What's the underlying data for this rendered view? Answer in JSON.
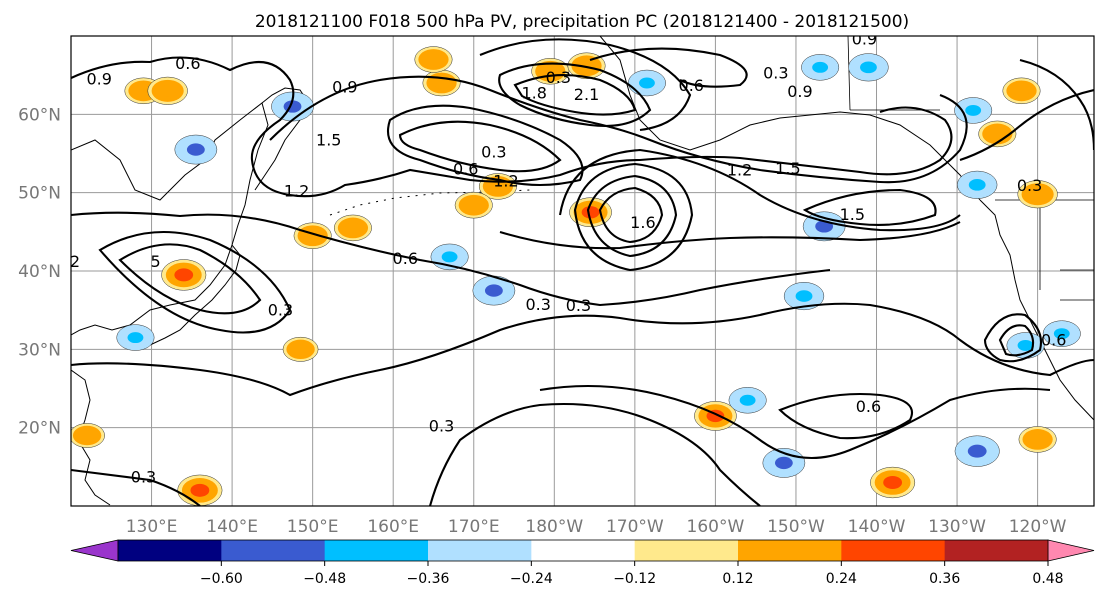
{
  "chart_data": {
    "type": "map",
    "title": "2018121100 F018 500 hPa PV, precipitation PC (2018121400 - 2018121500)",
    "lat_ticks": [
      "60°N",
      "50°N",
      "40°N",
      "30°N",
      "20°N"
    ],
    "lat_values": [
      60,
      50,
      40,
      30,
      20
    ],
    "lon_ticks": [
      "130°E",
      "140°E",
      "150°E",
      "160°E",
      "170°E",
      "180°W",
      "170°W",
      "160°W",
      "150°W",
      "140°W",
      "130°W",
      "120°W"
    ],
    "lon_values": [
      130,
      140,
      150,
      160,
      170,
      180,
      190,
      200,
      210,
      220,
      230,
      240
    ],
    "lon_range": [
      120,
      247
    ],
    "lat_range": [
      10,
      70
    ],
    "grid": true,
    "colorbar": {
      "ticks": [
        "−0.60",
        "−0.48",
        "−0.36",
        "−0.24",
        "−0.12",
        "0.12",
        "0.24",
        "0.36",
        "0.48",
        "0.60"
      ],
      "tick_values": [
        -0.6,
        -0.48,
        -0.36,
        -0.24,
        -0.12,
        0.12,
        0.24,
        0.36,
        0.48,
        0.6
      ],
      "colors": [
        "#9a35cc",
        "#000080",
        "#3a5bd0",
        "#00bfff",
        "#b0e0ff",
        "#ffffff",
        "#ffe98c",
        "#ffa500",
        "#ff4500",
        "#b22222",
        "#ff88b0"
      ],
      "extend": "both"
    },
    "contour_labels": [
      {
        "text": "0.9",
        "lon": 123.5,
        "lat": 63.8
      },
      {
        "text": "0.6",
        "lon": 134.5,
        "lat": 65.8
      },
      {
        "text": "0.9",
        "lon": 154.0,
        "lat": 62.8
      },
      {
        "text": "1.5",
        "lon": 152.0,
        "lat": 56.0
      },
      {
        "text": "1.2",
        "lon": 148.0,
        "lat": 49.5
      },
      {
        "text": "0.6",
        "lon": 169.0,
        "lat": 52.3
      },
      {
        "text": "0.3",
        "lon": 172.5,
        "lat": 54.5
      },
      {
        "text": "1.2",
        "lon": 174.0,
        "lat": 50.8
      },
      {
        "text": "0.6",
        "lon": 161.5,
        "lat": 40.9
      },
      {
        "text": "0.3",
        "lon": 146.0,
        "lat": 34.3
      },
      {
        "text": "0.3",
        "lon": 178.0,
        "lat": 35.0
      },
      {
        "text": "0.3",
        "lon": 183.0,
        "lat": 34.9
      },
      {
        "text": "1.8",
        "lon": 177.5,
        "lat": 62.0
      },
      {
        "text": "2.1",
        "lon": 184.0,
        "lat": 61.8
      },
      {
        "text": "0.3",
        "lon": 180.5,
        "lat": 64.0
      },
      {
        "text": "0.6",
        "lon": 197.0,
        "lat": 63.0
      },
      {
        "text": "0.3",
        "lon": 207.5,
        "lat": 64.6
      },
      {
        "text": "0.9",
        "lon": 210.5,
        "lat": 62.2
      },
      {
        "text": "0.9",
        "lon": 218.5,
        "lat": 68.9
      },
      {
        "text": "1.6",
        "lon": 191.0,
        "lat": 45.5
      },
      {
        "text": "1.2",
        "lon": 203.0,
        "lat": 52.2
      },
      {
        "text": "1.5",
        "lon": 209.0,
        "lat": 52.4
      },
      {
        "text": "1.5",
        "lon": 217.0,
        "lat": 46.5
      },
      {
        "text": "0.3",
        "lon": 239.0,
        "lat": 50.2
      },
      {
        "text": "2",
        "lon": 120.5,
        "lat": 40.5
      },
      {
        "text": "5",
        "lon": 130.5,
        "lat": 40.5
      },
      {
        "text": "0.6",
        "lon": 242.0,
        "lat": 30.5
      },
      {
        "text": "0.6",
        "lon": 219.0,
        "lat": 22.0
      },
      {
        "text": "0.3",
        "lon": 166.0,
        "lat": 19.5
      },
      {
        "text": "0.3",
        "lon": 129.0,
        "lat": 13.0
      }
    ],
    "precip_patches": [
      {
        "lon": 129.0,
        "lat": 63.0,
        "value": 0.3
      },
      {
        "lon": 132.0,
        "lat": 63.0,
        "value": 0.35
      },
      {
        "lon": 147.5,
        "lat": 61.0,
        "value": -0.4
      },
      {
        "lon": 135.5,
        "lat": 55.5,
        "value": -0.4
      },
      {
        "lon": 173.0,
        "lat": 50.8,
        "value": 0.3
      },
      {
        "lon": 170.0,
        "lat": 48.4,
        "value": 0.3
      },
      {
        "lon": 155.0,
        "lat": 45.5,
        "value": 0.3
      },
      {
        "lon": 150.0,
        "lat": 44.5,
        "value": 0.3
      },
      {
        "lon": 166.0,
        "lat": 64.0,
        "value": 0.3
      },
      {
        "lon": 165.0,
        "lat": 67.0,
        "value": 0.3
      },
      {
        "lon": 179.5,
        "lat": 65.5,
        "value": 0.3
      },
      {
        "lon": 184.0,
        "lat": 66.2,
        "value": 0.3
      },
      {
        "lon": 184.5,
        "lat": 47.5,
        "value": 0.4
      },
      {
        "lon": 167.0,
        "lat": 41.8,
        "value": -0.3
      },
      {
        "lon": 172.5,
        "lat": 37.5,
        "value": -0.4
      },
      {
        "lon": 191.5,
        "lat": 64.0,
        "value": -0.3
      },
      {
        "lon": 213.0,
        "lat": 66.0,
        "value": -0.3
      },
      {
        "lon": 219.0,
        "lat": 66.0,
        "value": -0.35
      },
      {
        "lon": 238.0,
        "lat": 63.0,
        "value": 0.3
      },
      {
        "lon": 232.0,
        "lat": 60.5,
        "value": -0.3
      },
      {
        "lon": 235.0,
        "lat": 57.5,
        "value": 0.3
      },
      {
        "lon": 232.5,
        "lat": 51.0,
        "value": -0.35
      },
      {
        "lon": 240.0,
        "lat": 49.8,
        "value": 0.35
      },
      {
        "lon": 213.5,
        "lat": 45.7,
        "value": -0.4
      },
      {
        "lon": 211.0,
        "lat": 36.8,
        "value": -0.35
      },
      {
        "lon": 134.0,
        "lat": 39.5,
        "value": 0.45
      },
      {
        "lon": 128.0,
        "lat": 31.5,
        "value": -0.3
      },
      {
        "lon": 148.5,
        "lat": 30.0,
        "value": 0.25
      },
      {
        "lon": 200.0,
        "lat": 21.5,
        "value": 0.4
      },
      {
        "lon": 204.0,
        "lat": 23.5,
        "value": -0.3
      },
      {
        "lon": 208.5,
        "lat": 15.5,
        "value": -0.4
      },
      {
        "lon": 222.0,
        "lat": 13.0,
        "value": 0.45
      },
      {
        "lon": 232.5,
        "lat": 17.0,
        "value": -0.45
      },
      {
        "lon": 240.0,
        "lat": 18.5,
        "value": 0.3
      },
      {
        "lon": 136.0,
        "lat": 12.0,
        "value": 0.45
      },
      {
        "lon": 122.0,
        "lat": 19.0,
        "value": 0.25
      },
      {
        "lon": 243.0,
        "lat": 32.0,
        "value": -0.3
      },
      {
        "lon": 238.5,
        "lat": 30.5,
        "value": -0.3
      }
    ]
  }
}
